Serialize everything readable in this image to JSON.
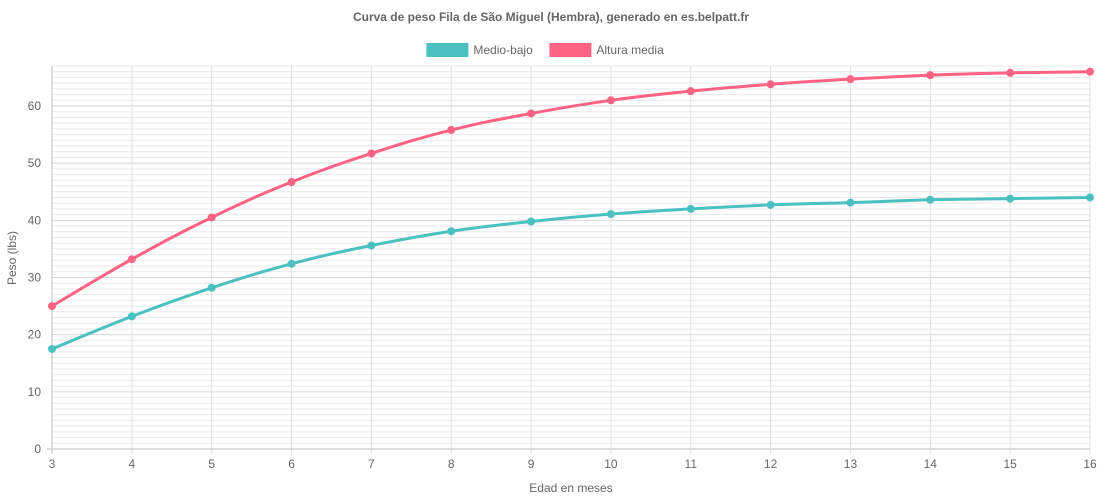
{
  "chart_data": {
    "type": "line",
    "title": "Curva de peso Fila de São Miguel (Hembra), generado en es.belpatt.fr",
    "xlabel": "Edad en meses",
    "ylabel": "Peso (lbs)",
    "x": [
      3,
      4,
      5,
      6,
      7,
      8,
      9,
      10,
      11,
      12,
      13,
      14,
      15,
      16
    ],
    "xlim": [
      3,
      16
    ],
    "ylim": [
      0,
      67
    ],
    "yticks": [
      0,
      10,
      20,
      30,
      40,
      50,
      60
    ],
    "grid": true,
    "legend_position": "top",
    "series": [
      {
        "name": "Medio-bajo",
        "color": "#4bc0c0",
        "values": [
          17.5,
          23.2,
          28.2,
          32.4,
          35.6,
          38.1,
          39.8,
          41.1,
          42.0,
          42.7,
          43.1,
          43.6,
          43.8,
          44.0
        ]
      },
      {
        "name": "Altura media",
        "color": "#ff6384",
        "values": [
          25.0,
          33.2,
          40.5,
          46.7,
          51.7,
          55.8,
          58.7,
          61.0,
          62.6,
          63.8,
          64.7,
          65.4,
          65.8,
          66.0
        ]
      }
    ]
  }
}
